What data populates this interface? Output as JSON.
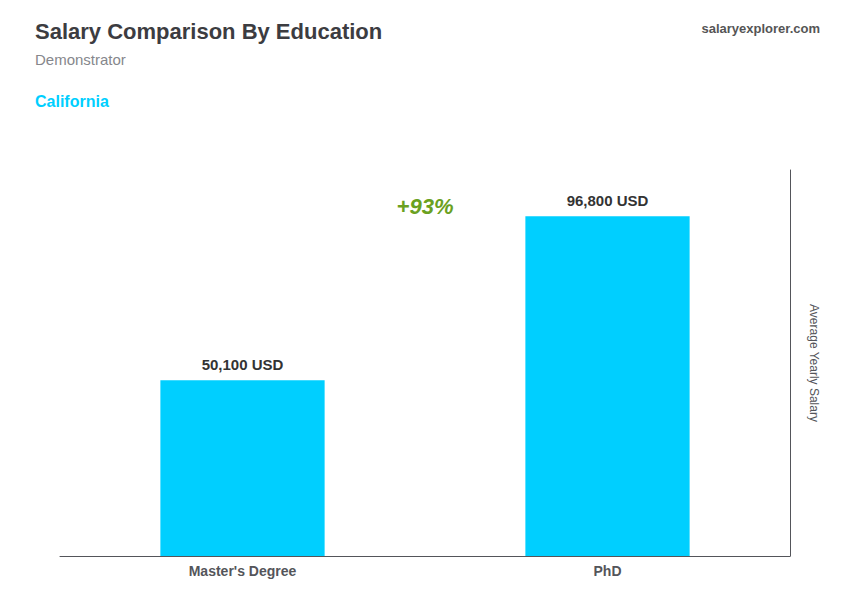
{
  "chart_data": {
    "type": "bar",
    "title": "Salary Comparison By Education",
    "subtitle": "Demonstrator",
    "ylabel": "Average Yearly Salary",
    "annotations": [
      "California",
      "+93%",
      "salaryexplorer.com"
    ],
    "categories": [
      "Master's Degree",
      "PhD"
    ],
    "values": [
      50100,
      96800
    ],
    "value_labels": [
      "50,100 USD",
      "96,800 USD"
    ],
    "data_labels": true,
    "color": "#00cfff",
    "ylim": [
      0,
      110000
    ],
    "grid": false,
    "tick_labels": "x"
  }
}
